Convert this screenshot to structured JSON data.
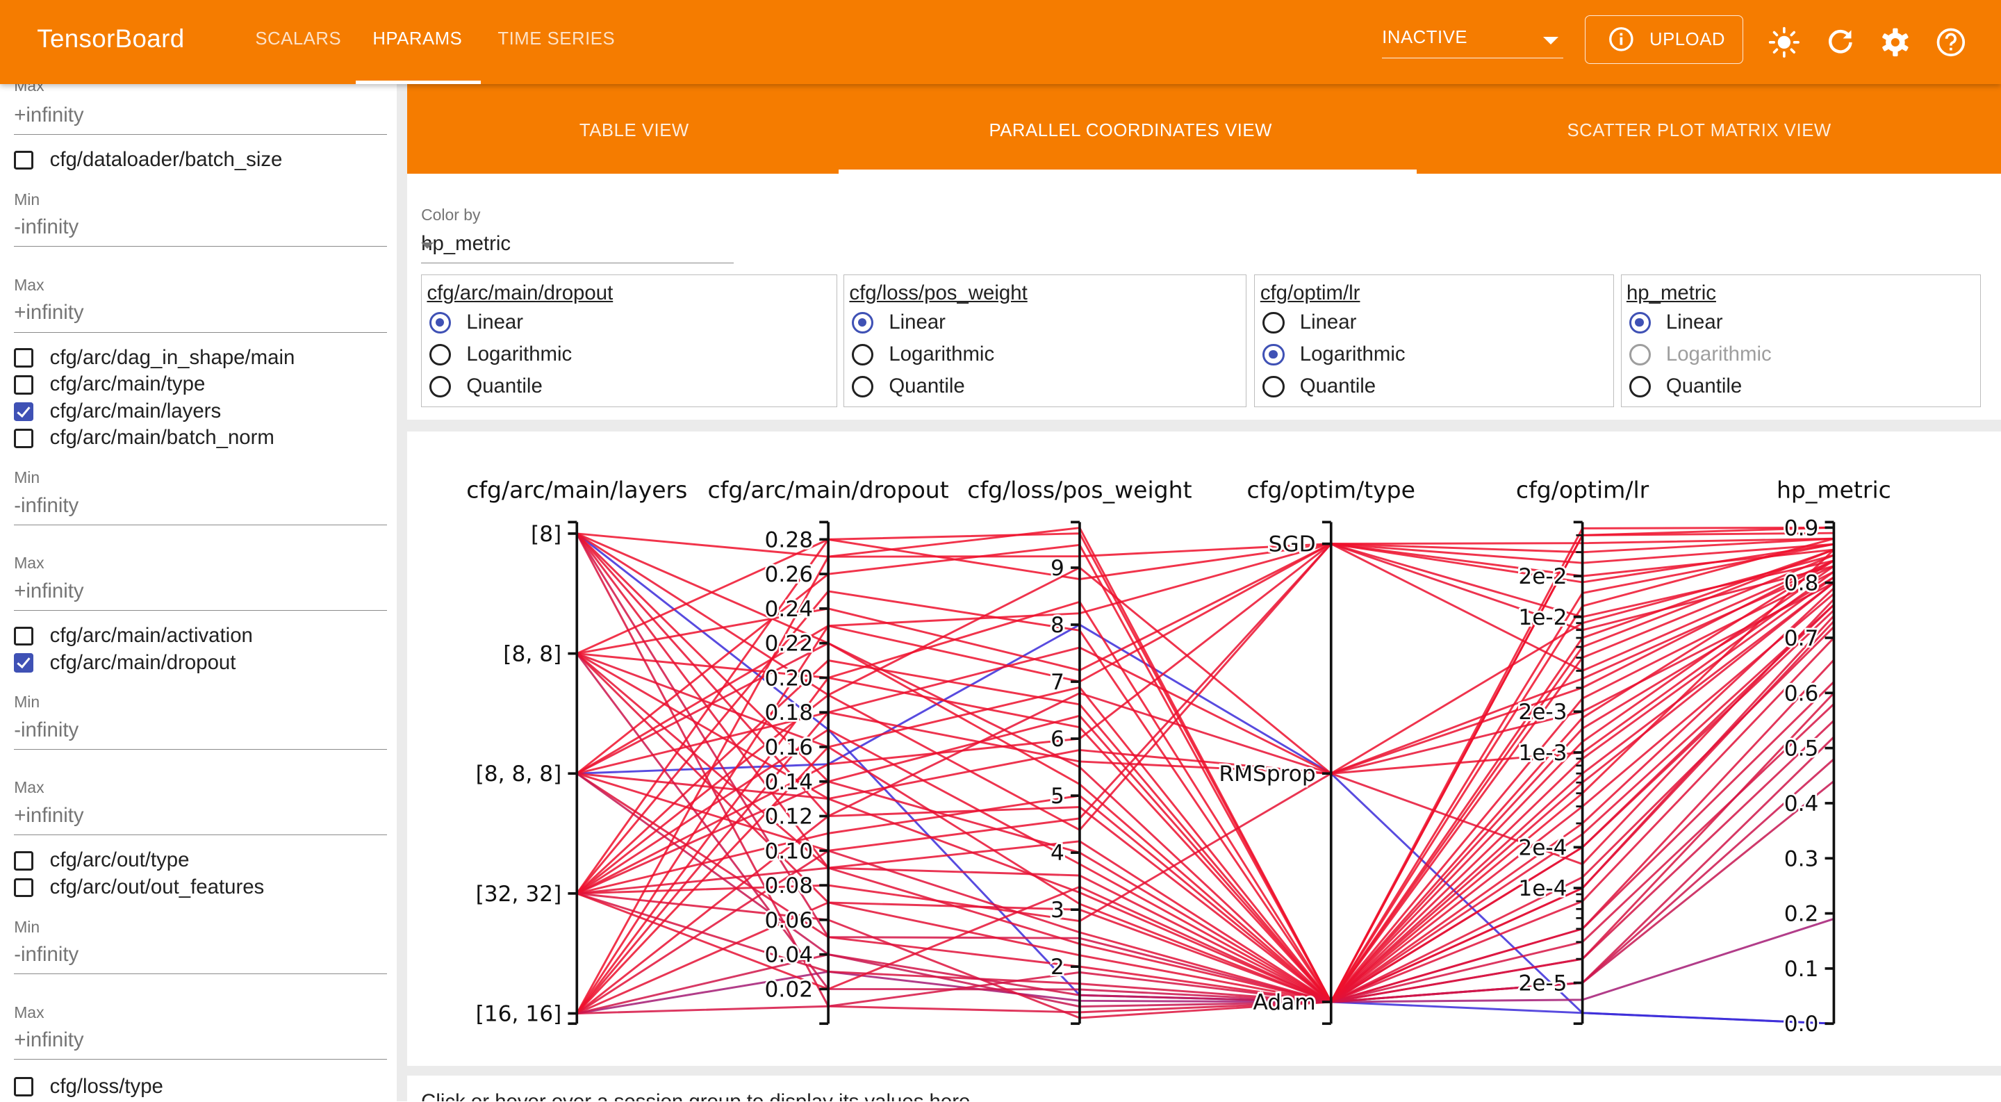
{
  "app": {
    "title": "TensorBoard",
    "nav_tabs": [
      {
        "label": "SCALARS",
        "active": false
      },
      {
        "label": "HPARAMS",
        "active": true
      },
      {
        "label": "TIME SERIES",
        "active": false
      }
    ],
    "run_state": "INACTIVE",
    "upload_label": "UPLOAD",
    "icons": [
      "info-icon",
      "brightness-icon",
      "refresh-icon",
      "settings-icon",
      "help-icon"
    ],
    "brand_color": "#f57c00"
  },
  "sidebar": {
    "min_label": "Min",
    "max_label": "Max",
    "neg_inf": "-infinity",
    "pos_inf": "+infinity",
    "items": [
      {
        "label": "cfg/dataloader/batch_size",
        "checked": false
      },
      {
        "label": "cfg/arc/dag_in_shape/main",
        "checked": false
      },
      {
        "label": "cfg/arc/main/type",
        "checked": false
      },
      {
        "label": "cfg/arc/main/layers",
        "checked": true
      },
      {
        "label": "cfg/arc/main/batch_norm",
        "checked": false
      },
      {
        "label": "cfg/arc/main/activation",
        "checked": false
      },
      {
        "label": "cfg/arc/main/dropout",
        "checked": true
      },
      {
        "label": "cfg/arc/out/type",
        "checked": false
      },
      {
        "label": "cfg/arc/out/out_features",
        "checked": false
      },
      {
        "label": "cfg/loss/type",
        "checked": false
      }
    ]
  },
  "views": {
    "tabs": [
      {
        "label": "TABLE VIEW",
        "active": false
      },
      {
        "label": "PARALLEL COORDINATES VIEW",
        "active": true
      },
      {
        "label": "SCATTER PLOT MATRIX VIEW",
        "active": false
      }
    ]
  },
  "options": {
    "color_by_label": "Color by",
    "color_by_value": "hp_metric",
    "scale_options": [
      "Linear",
      "Logarithmic",
      "Quantile"
    ],
    "scales": [
      {
        "column": "cfg/arc/main/dropout",
        "selected": "Linear",
        "log_disabled": false
      },
      {
        "column": "cfg/loss/pos_weight",
        "selected": "Linear",
        "log_disabled": false
      },
      {
        "column": "cfg/optim/lr",
        "selected": "Logarithmic",
        "log_disabled": false
      },
      {
        "column": "hp_metric",
        "selected": "Linear",
        "log_disabled": true
      }
    ]
  },
  "footer_text": "Click or hover over a session group to display its values here.",
  "chart_data": {
    "type": "parallel_coordinates",
    "color_by": "hp_metric",
    "colors": {
      "high": "#f0102a",
      "low": "#3b2bd9"
    },
    "axes": [
      {
        "name": "cfg/arc/main/layers",
        "kind": "categorical",
        "categories": [
          "[8]",
          "[8, 8]",
          "[8, 8, 8]",
          "[32, 32]",
          "[16, 16]"
        ]
      },
      {
        "name": "cfg/arc/main/dropout",
        "kind": "linear",
        "range": [
          0.0,
          0.29
        ],
        "ticks": [
          "0.02",
          "0.04",
          "0.06",
          "0.08",
          "0.10",
          "0.12",
          "0.14",
          "0.16",
          "0.18",
          "0.20",
          "0.22",
          "0.24",
          "0.26",
          "0.28"
        ]
      },
      {
        "name": "cfg/loss/pos_weight",
        "kind": "linear",
        "range": [
          1.0,
          9.8
        ],
        "ticks": [
          "2",
          "3",
          "4",
          "5",
          "6",
          "7",
          "8",
          "9"
        ]
      },
      {
        "name": "cfg/optim/type",
        "kind": "categorical",
        "categories": [
          "SGD",
          "RMSprop",
          "Adam"
        ]
      },
      {
        "name": "cfg/optim/lr",
        "kind": "log",
        "range": [
          1e-05,
          0.05
        ],
        "ticks": [
          "2e-5",
          "1e-4",
          "2e-4",
          "1e-3",
          "2e-3",
          "1e-2",
          "2e-2"
        ]
      },
      {
        "name": "hp_metric",
        "kind": "linear",
        "range": [
          0.0,
          0.91
        ],
        "ticks": [
          "0.0",
          "0.1",
          "0.2",
          "0.3",
          "0.4",
          "0.5",
          "0.6",
          "0.7",
          "0.8",
          "0.9"
        ]
      }
    ],
    "sessions": [
      {
        "layers": "[8]",
        "dropout": 0.17,
        "pos_weight": 1.5,
        "optim": "Adam",
        "lr": 1.2e-05,
        "hp_metric": 0.0
      },
      {
        "layers": "[8, 8, 8]",
        "dropout": 0.15,
        "pos_weight": 8.0,
        "optim": "RMSprop",
        "lr": 1.2e-05,
        "hp_metric": 0.0
      },
      {
        "layers": "[16, 16]",
        "dropout": 0.03,
        "pos_weight": 1.4,
        "optim": "Adam",
        "lr": 1.5e-05,
        "hp_metric": 0.19
      },
      {
        "layers": "[8]",
        "dropout": 0.27,
        "pos_weight": 9.2,
        "optim": "SGD",
        "lr": 0.03,
        "hp_metric": 0.88
      },
      {
        "layers": "[8]",
        "dropout": 0.22,
        "pos_weight": 5.2,
        "optim": "Adam",
        "lr": 0.0005,
        "hp_metric": 0.86
      },
      {
        "layers": "[8]",
        "dropout": 0.05,
        "pos_weight": 2.5,
        "optim": "Adam",
        "lr": 3e-05,
        "hp_metric": 0.55
      },
      {
        "layers": "[8]",
        "dropout": 0.12,
        "pos_weight": 6.8,
        "optim": "RMSprop",
        "lr": 0.002,
        "hp_metric": 0.8
      },
      {
        "layers": "[8]",
        "dropout": 0.09,
        "pos_weight": 3.6,
        "optim": "Adam",
        "lr": 0.0002,
        "hp_metric": 0.76
      },
      {
        "layers": "[8]",
        "dropout": 0.01,
        "pos_weight": 1.2,
        "optim": "Adam",
        "lr": 5e-05,
        "hp_metric": 0.62
      },
      {
        "layers": "[8]",
        "dropout": 0.19,
        "pos_weight": 4.4,
        "optim": "SGD",
        "lr": 0.01,
        "hp_metric": 0.84
      },
      {
        "layers": "[8, 8]",
        "dropout": 0.28,
        "pos_weight": 9.6,
        "optim": "Adam",
        "lr": 0.04,
        "hp_metric": 0.89
      },
      {
        "layers": "[8, 8]",
        "dropout": 0.13,
        "pos_weight": 5.8,
        "optim": "RMSprop",
        "lr": 0.001,
        "hp_metric": 0.82
      },
      {
        "layers": "[8, 8]",
        "dropout": 0.07,
        "pos_weight": 2.2,
        "optim": "Adam",
        "lr": 0.0001,
        "hp_metric": 0.74
      },
      {
        "layers": "[8, 8]",
        "dropout": 0.24,
        "pos_weight": 7.2,
        "optim": "SGD",
        "lr": 0.02,
        "hp_metric": 0.86
      },
      {
        "layers": "[8, 8]",
        "dropout": 0.02,
        "pos_weight": 1.6,
        "optim": "Adam",
        "lr": 2e-05,
        "hp_metric": 0.48
      },
      {
        "layers": "[8, 8]",
        "dropout": 0.16,
        "pos_weight": 3.1,
        "optim": "Adam",
        "lr": 0.0003,
        "hp_metric": 0.79
      },
      {
        "layers": "[8, 8]",
        "dropout": 0.2,
        "pos_weight": 6.2,
        "optim": "Adam",
        "lr": 0.005,
        "hp_metric": 0.85
      },
      {
        "layers": "[8, 8, 8]",
        "dropout": 0.26,
        "pos_weight": 9.4,
        "optim": "Adam",
        "lr": 0.04,
        "hp_metric": 0.9
      },
      {
        "layers": "[8, 8, 8]",
        "dropout": 0.1,
        "pos_weight": 4.6,
        "optim": "SGD",
        "lr": 0.008,
        "hp_metric": 0.83
      },
      {
        "layers": "[8, 8, 8]",
        "dropout": 0.05,
        "pos_weight": 2.0,
        "optim": "Adam",
        "lr": 8e-05,
        "hp_metric": 0.7
      },
      {
        "layers": "[8, 8, 8]",
        "dropout": 0.18,
        "pos_weight": 7.6,
        "optim": "RMSprop",
        "lr": 0.003,
        "hp_metric": 0.84
      },
      {
        "layers": "[8, 8, 8]",
        "dropout": 0.13,
        "pos_weight": 3.3,
        "optim": "Adam",
        "lr": 0.0004,
        "hp_metric": 0.78
      },
      {
        "layers": "[8, 8, 8]",
        "dropout": 0.22,
        "pos_weight": 5.5,
        "optim": "Adam",
        "lr": 0.0015,
        "hp_metric": 0.81
      },
      {
        "layers": "[8, 8, 8]",
        "dropout": 0.04,
        "pos_weight": 1.3,
        "optim": "Adam",
        "lr": 2e-05,
        "hp_metric": 0.44
      },
      {
        "layers": "[32, 32]",
        "dropout": 0.28,
        "pos_weight": 8.8,
        "optim": "SGD",
        "lr": 0.035,
        "hp_metric": 0.88
      },
      {
        "layers": "[32, 32]",
        "dropout": 0.21,
        "pos_weight": 6.6,
        "optim": "Adam",
        "lr": 0.006,
        "hp_metric": 0.86
      },
      {
        "layers": "[32, 32]",
        "dropout": 0.14,
        "pos_weight": 4.0,
        "optim": "Adam",
        "lr": 0.0006,
        "hp_metric": 0.8
      },
      {
        "layers": "[32, 32]",
        "dropout": 0.08,
        "pos_weight": 2.8,
        "optim": "RMSprop",
        "lr": 0.00015,
        "hp_metric": 0.77
      },
      {
        "layers": "[32, 32]",
        "dropout": 0.03,
        "pos_weight": 1.7,
        "optim": "Adam",
        "lr": 3e-05,
        "hp_metric": 0.6
      },
      {
        "layers": "[32, 32]",
        "dropout": 0.11,
        "pos_weight": 5.0,
        "optim": "Adam",
        "lr": 0.0012,
        "hp_metric": 0.83
      },
      {
        "layers": "[32, 32]",
        "dropout": 0.17,
        "pos_weight": 3.8,
        "optim": "Adam",
        "lr": 0.0025,
        "hp_metric": 0.82
      },
      {
        "layers": "[32, 32]",
        "dropout": 0.25,
        "pos_weight": 7.9,
        "optim": "Adam",
        "lr": 0.015,
        "hp_metric": 0.87
      },
      {
        "layers": "[32, 32]",
        "dropout": 0.06,
        "pos_weight": 1.1,
        "optim": "Adam",
        "lr": 5e-05,
        "hp_metric": 0.66
      },
      {
        "layers": "[32, 32]",
        "dropout": 0.19,
        "pos_weight": 9.0,
        "optim": "RMSprop",
        "lr": 0.009,
        "hp_metric": 0.85
      },
      {
        "layers": "[32, 32]",
        "dropout": 0.09,
        "pos_weight": 2.4,
        "optim": "Adam",
        "lr": 0.0001,
        "hp_metric": 0.73
      },
      {
        "layers": "[32, 32]",
        "dropout": 0.15,
        "pos_weight": 6.0,
        "optim": "SGD",
        "lr": 0.004,
        "hp_metric": 0.84
      },
      {
        "layers": "[16, 16]",
        "dropout": 0.27,
        "pos_weight": 9.7,
        "optim": "Adam",
        "lr": 0.045,
        "hp_metric": 0.9
      },
      {
        "layers": "[16, 16]",
        "dropout": 0.23,
        "pos_weight": 7.0,
        "optim": "SGD",
        "lr": 0.018,
        "hp_metric": 0.87
      },
      {
        "layers": "[16, 16]",
        "dropout": 0.12,
        "pos_weight": 4.8,
        "optim": "Adam",
        "lr": 0.0009,
        "hp_metric": 0.81
      },
      {
        "layers": "[16, 16]",
        "dropout": 0.07,
        "pos_weight": 3.0,
        "optim": "Adam",
        "lr": 0.0002,
        "hp_metric": 0.75
      },
      {
        "layers": "[16, 16]",
        "dropout": 0.01,
        "pos_weight": 1.9,
        "optim": "Adam",
        "lr": 4e-05,
        "hp_metric": 0.58
      },
      {
        "layers": "[16, 16]",
        "dropout": 0.18,
        "pos_weight": 5.6,
        "optim": "RMSprop",
        "lr": 0.0035,
        "hp_metric": 0.83
      },
      {
        "layers": "[16, 16]",
        "dropout": 0.1,
        "pos_weight": 2.6,
        "optim": "Adam",
        "lr": 0.00012,
        "hp_metric": 0.72
      },
      {
        "layers": "[16, 16]",
        "dropout": 0.2,
        "pos_weight": 8.4,
        "optim": "Adam",
        "lr": 0.012,
        "hp_metric": 0.88
      },
      {
        "layers": "[16, 16]",
        "dropout": 0.04,
        "pos_weight": 1.5,
        "optim": "Adam",
        "lr": 2e-05,
        "hp_metric": 0.52
      },
      {
        "layers": "[8]",
        "dropout": 0.14,
        "pos_weight": 6.4,
        "optim": "Adam",
        "lr": 0.0018,
        "hp_metric": 0.84
      },
      {
        "layers": "[8, 8]",
        "dropout": 0.09,
        "pos_weight": 4.2,
        "optim": "Adam",
        "lr": 0.0007,
        "hp_metric": 0.8
      },
      {
        "layers": "[8, 8, 8]",
        "dropout": 0.23,
        "pos_weight": 8.2,
        "optim": "SGD",
        "lr": 0.025,
        "hp_metric": 0.87
      },
      {
        "layers": "[32, 32]",
        "dropout": 0.02,
        "pos_weight": 3.4,
        "optim": "Adam",
        "lr": 0.00025,
        "hp_metric": 0.76
      },
      {
        "layers": "[16, 16]",
        "dropout": 0.16,
        "pos_weight": 6.9,
        "optim": "Adam",
        "lr": 0.007,
        "hp_metric": 0.86
      }
    ]
  }
}
